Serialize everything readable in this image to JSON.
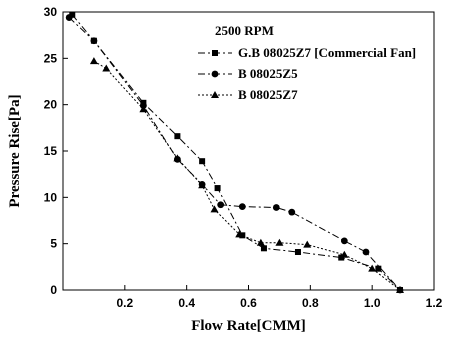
{
  "chart_data": {
    "type": "line",
    "xlabel": "Flow Rate[CMM]",
    "ylabel": "Pressure Rise[Pa]",
    "xlim": [
      0,
      1.2
    ],
    "ylim": [
      0,
      30
    ],
    "xticks": [
      0.2,
      0.4,
      0.6,
      0.8,
      1.0,
      1.2
    ],
    "xtick_labels": [
      "0.2",
      "0.4",
      "0.6",
      "0.8",
      "1.0",
      "1.2"
    ],
    "yticks": [
      0,
      5,
      10,
      15,
      20,
      25,
      30
    ],
    "ytick_labels": [
      "0",
      "5",
      "10",
      "15",
      "20",
      "25",
      "30"
    ],
    "grid": false,
    "legend_title": "2500 RPM",
    "legend_position": "top-right",
    "series": [
      {
        "name": "G.B 08025Z7 [Commercial Fan]",
        "marker": "square",
        "line_style": "dash-dot",
        "color": "#000000",
        "x": [
          0.03,
          0.1,
          0.26,
          0.37,
          0.45,
          0.5,
          0.58,
          0.65,
          0.76,
          0.9,
          1.02,
          1.09
        ],
        "y": [
          29.7,
          26.9,
          20.2,
          16.6,
          13.9,
          11.0,
          5.9,
          4.5,
          4.1,
          3.5,
          2.3,
          0.0
        ]
      },
      {
        "name": "B 08025Z5",
        "marker": "circle",
        "line_style": "dash-dot",
        "color": "#000000",
        "x": [
          0.02,
          0.1,
          0.26,
          0.37,
          0.45,
          0.51,
          0.58,
          0.69,
          0.74,
          0.91,
          0.98,
          1.09
        ],
        "y": [
          29.4,
          26.9,
          19.9,
          14.1,
          11.4,
          9.2,
          9.0,
          8.9,
          8.4,
          5.3,
          4.1,
          0.0
        ]
      },
      {
        "name": "B 08025Z7",
        "marker": "triangle",
        "line_style": "dotted",
        "color": "#000000",
        "x": [
          0.1,
          0.14,
          0.26,
          0.37,
          0.45,
          0.49,
          0.57,
          0.64,
          0.7,
          0.79,
          0.91,
          1.0,
          1.09
        ],
        "y": [
          24.7,
          23.9,
          19.5,
          14.2,
          11.3,
          8.7,
          6.0,
          5.1,
          5.1,
          4.9,
          3.8,
          2.3,
          0.0
        ]
      }
    ]
  }
}
